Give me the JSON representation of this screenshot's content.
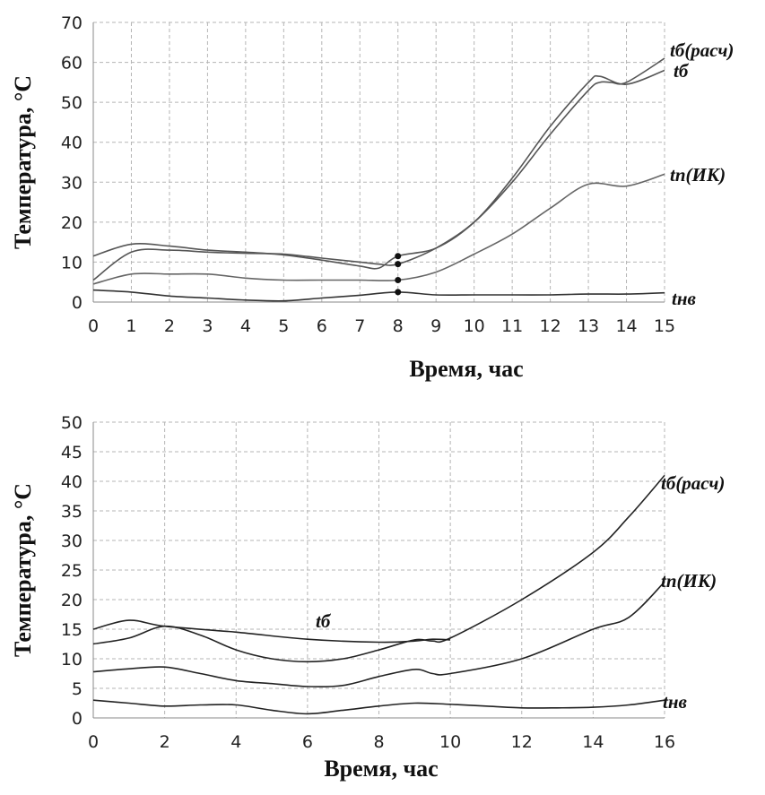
{
  "chart_data": [
    {
      "type": "line",
      "xlabel": "Время, час",
      "ylabel": "Температура, °C",
      "xlim": [
        0,
        15
      ],
      "ylim": [
        0,
        70
      ],
      "xticks": [
        0,
        1,
        2,
        3,
        4,
        5,
        6,
        7,
        8,
        9,
        10,
        11,
        12,
        13,
        14,
        15
      ],
      "yticks": [
        0,
        10,
        20,
        30,
        40,
        50,
        60,
        70
      ],
      "grid": true,
      "marker_x": 8,
      "series": [
        {
          "name": "tб(расч)",
          "color": "#555555",
          "x": [
            0,
            1,
            2,
            3,
            4,
            5,
            6,
            7,
            7.5,
            8,
            9,
            10,
            11,
            12,
            13,
            13.3,
            13.6,
            14,
            15
          ],
          "y": [
            5.5,
            12.5,
            13,
            12.5,
            12.2,
            12,
            11,
            10,
            9.5,
            9.5,
            13.5,
            20,
            30,
            42,
            53,
            55,
            55,
            55,
            61
          ]
        },
        {
          "name": "tб",
          "color": "#555555",
          "x": [
            0,
            1,
            2,
            3,
            4,
            5,
            6,
            7,
            7.5,
            8,
            9,
            10,
            11,
            12,
            13,
            13.3,
            14,
            15
          ],
          "y": [
            11.5,
            14.5,
            14,
            13,
            12.5,
            11.8,
            10.5,
            9,
            8.5,
            11.5,
            13.5,
            20,
            31,
            44,
            55,
            56.5,
            54.5,
            58
          ]
        },
        {
          "name": "tп(ИК)",
          "color": "#666666",
          "x": [
            0,
            1,
            2,
            3,
            4,
            5,
            6,
            7,
            8,
            9,
            10,
            11,
            12,
            13,
            14,
            15
          ],
          "y": [
            4.5,
            7,
            7,
            7,
            6,
            5.5,
            5.5,
            5.5,
            5.5,
            7.5,
            12,
            17,
            23.5,
            29.5,
            29,
            32
          ]
        },
        {
          "name": "tнв",
          "color": "#333333",
          "x": [
            0,
            1,
            2,
            3,
            4,
            5,
            6,
            7,
            8,
            9,
            10,
            11,
            12,
            13,
            14,
            15
          ],
          "y": [
            3,
            2.5,
            1.5,
            1,
            0.5,
            0.3,
            1,
            1.7,
            2.5,
            1.8,
            1.8,
            1.8,
            1.8,
            2,
            2,
            2.3
          ]
        }
      ],
      "series_labels": [
        "tб(расч)",
        "tб",
        "tп(ИК)",
        "tнв"
      ]
    },
    {
      "type": "line",
      "xlabel": "Время, час",
      "ylabel": "Температура, °C",
      "xlim": [
        0,
        16
      ],
      "ylim": [
        0,
        50
      ],
      "xticks": [
        0,
        2,
        4,
        6,
        8,
        10,
        12,
        14,
        16
      ],
      "yticks": [
        0,
        5,
        10,
        15,
        20,
        25,
        30,
        35,
        40,
        45,
        50
      ],
      "grid": true,
      "series": [
        {
          "name": "tб(расч)",
          "color": "#222222",
          "x": [
            0,
            1,
            2,
            3,
            4,
            5,
            6,
            7,
            8,
            9,
            9.5,
            10,
            12,
            14,
            15,
            16
          ],
          "y": [
            12.5,
            13.5,
            15.5,
            14,
            11.5,
            10,
            9.5,
            10,
            11.5,
            13.2,
            13,
            13.5,
            20,
            28,
            34,
            41
          ]
        },
        {
          "name": "tб",
          "color": "#222222",
          "x": [
            0,
            1,
            2,
            4,
            6,
            8,
            9,
            9.5,
            10
          ],
          "y": [
            15,
            16.5,
            15.5,
            14.5,
            13.3,
            12.8,
            13,
            13.3,
            13.2
          ]
        },
        {
          "name": "tп(ИК)",
          "color": "#222222",
          "x": [
            0,
            1,
            2,
            3,
            4,
            5,
            6,
            7,
            8,
            9,
            9.5,
            10,
            12,
            14,
            15,
            16
          ],
          "y": [
            7.8,
            8.3,
            8.6,
            7.5,
            6.3,
            5.8,
            5.3,
            5.5,
            7,
            8.2,
            7.5,
            7.5,
            10,
            15,
            17,
            23
          ]
        },
        {
          "name": "tнв",
          "color": "#222222",
          "x": [
            0,
            1,
            2,
            3,
            4,
            5,
            6,
            7,
            8,
            9,
            10,
            11,
            12,
            13,
            14,
            15,
            16
          ],
          "y": [
            3,
            2.5,
            2,
            2.2,
            2.2,
            1.3,
            0.7,
            1.3,
            2,
            2.5,
            2.3,
            2,
            1.7,
            1.7,
            1.8,
            2.2,
            3
          ]
        }
      ],
      "series_labels": [
        "tб(расч)",
        "tб",
        "tп(ИК)",
        "tнв"
      ]
    }
  ]
}
